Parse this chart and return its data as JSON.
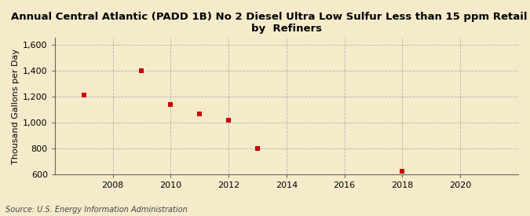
{
  "title": "Annual Central Atlantic (PADD 1B) No 2 Diesel Ultra Low Sulfur Less than 15 ppm Retail Sales\nby  Refiners",
  "ylabel": "Thousand Gallons per Day",
  "source": "Source: U.S. Energy Information Administration",
  "background_color": "#f5ebcb",
  "plot_bg_color": "#f5ebcb",
  "x_values": [
    2007,
    2009,
    2010,
    2011,
    2012,
    2013,
    2018
  ],
  "y_values": [
    1210,
    1400,
    1140,
    1065,
    1015,
    800,
    625
  ],
  "marker_color": "#cc0000",
  "marker_size": 20,
  "xlim": [
    2006,
    2022
  ],
  "ylim": [
    600,
    1650
  ],
  "xticks": [
    2008,
    2010,
    2012,
    2014,
    2016,
    2018,
    2020
  ],
  "yticks": [
    600,
    800,
    1000,
    1200,
    1400,
    1600
  ],
  "ytick_labels": [
    "600",
    "800",
    "1,000",
    "1,200",
    "1,400",
    "1,600"
  ],
  "title_fontsize": 9.5,
  "axis_label_fontsize": 8,
  "tick_fontsize": 8,
  "source_fontsize": 7
}
